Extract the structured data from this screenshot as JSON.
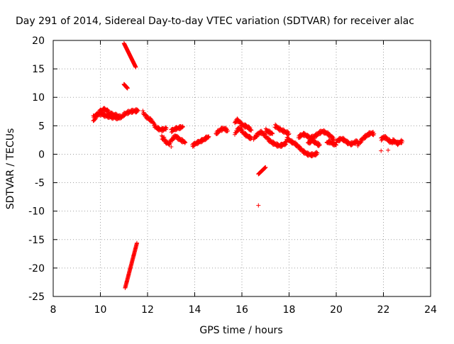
{
  "chart_data": {
    "type": "scatter",
    "title": "Day 291 of 2014, Sidereal Day-to-day VTEC variation (SDTVAR) for receiver alac",
    "xlabel": "GPS time / hours",
    "ylabel": "SDTVAR / TECUs",
    "xlim": [
      8,
      24
    ],
    "ylim": [
      -25,
      20
    ],
    "xticks": [
      "8",
      "10",
      "12",
      "14",
      "16",
      "18",
      "20",
      "22",
      "24"
    ],
    "yticks": [
      "20",
      "15",
      "10",
      "5",
      "0",
      "-5",
      "-10",
      "-15",
      "-20",
      "-25"
    ],
    "grid": true,
    "marker": "+",
    "colors": {
      "points": "#ff0000",
      "grid": "#a0a0a0",
      "axis": "#000000"
    },
    "series": [
      {
        "name": "SDTVAR",
        "segments": [
          {
            "x0": 11.0,
            "y0": 19.5,
            "x1": 11.5,
            "y1": 15.3
          },
          {
            "x0": 11.05,
            "y0": -23.5,
            "x1": 11.55,
            "y1": -15.6
          },
          {
            "x0": 11.0,
            "y0": 12.3,
            "x1": 11.15,
            "y1": 11.6
          },
          {
            "x0": 16.7,
            "y0": -3.5,
            "x1": 17.0,
            "y1": -2.3
          }
        ],
        "tracks": [
          [
            [
              9.7,
              5.8
            ],
            [
              9.8,
              6.5
            ],
            [
              9.9,
              7.2
            ],
            [
              10.0,
              7.6
            ],
            [
              10.1,
              7.8
            ],
            [
              10.2,
              7.9
            ],
            [
              10.3,
              7.6
            ],
            [
              10.4,
              7.2
            ],
            [
              10.5,
              7.0
            ],
            [
              10.6,
              6.9
            ],
            [
              10.7,
              6.8
            ],
            [
              10.8,
              6.6
            ],
            [
              10.9,
              6.5
            ],
            [
              11.0,
              7.0
            ],
            [
              11.1,
              7.2
            ],
            [
              11.2,
              7.4
            ],
            [
              11.3,
              7.5
            ],
            [
              11.4,
              7.6
            ],
            [
              11.5,
              7.6
            ],
            [
              11.6,
              7.7
            ]
          ],
          [
            [
              9.7,
              6.6
            ],
            [
              9.8,
              6.8
            ],
            [
              9.9,
              7.0
            ],
            [
              10.0,
              7.1
            ],
            [
              10.1,
              7.0
            ],
            [
              10.2,
              6.8
            ],
            [
              10.3,
              6.7
            ],
            [
              10.4,
              6.6
            ],
            [
              10.5,
              6.5
            ],
            [
              10.6,
              6.5
            ],
            [
              10.7,
              6.4
            ],
            [
              10.8,
              6.3
            ]
          ],
          [
            [
              11.8,
              7.4
            ],
            [
              11.9,
              6.8
            ],
            [
              12.0,
              6.4
            ],
            [
              12.1,
              6.1
            ],
            [
              12.2,
              5.8
            ],
            [
              12.3,
              5.0
            ],
            [
              12.4,
              4.6
            ],
            [
              12.5,
              4.4
            ],
            [
              12.6,
              4.3
            ],
            [
              12.7,
              4.4
            ],
            [
              12.8,
              4.6
            ]
          ],
          [
            [
              12.6,
              3.0
            ],
            [
              12.7,
              2.5
            ],
            [
              12.8,
              2.1
            ],
            [
              12.9,
              1.8
            ],
            [
              13.0,
              2.4
            ],
            [
              13.1,
              2.9
            ],
            [
              13.2,
              3.2
            ],
            [
              13.3,
              2.8
            ],
            [
              13.4,
              2.5
            ],
            [
              13.5,
              2.3
            ],
            [
              13.6,
              2.1
            ]
          ],
          [
            [
              13.0,
              4.1
            ],
            [
              13.1,
              4.3
            ],
            [
              13.2,
              4.5
            ],
            [
              13.3,
              4.6
            ],
            [
              13.4,
              4.7
            ],
            [
              13.5,
              4.8
            ]
          ],
          [
            [
              13.9,
              1.5
            ],
            [
              14.0,
              1.8
            ],
            [
              14.1,
              2.0
            ],
            [
              14.2,
              2.2
            ],
            [
              14.3,
              2.4
            ],
            [
              14.4,
              2.6
            ],
            [
              14.5,
              2.9
            ],
            [
              14.6,
              3.1
            ]
          ],
          [
            [
              14.9,
              3.6
            ],
            [
              15.0,
              4.0
            ],
            [
              15.1,
              4.3
            ],
            [
              15.2,
              4.5
            ],
            [
              15.3,
              4.4
            ],
            [
              15.4,
              4.1
            ]
          ],
          [
            [
              15.7,
              5.6
            ],
            [
              15.8,
              6.0
            ],
            [
              15.9,
              5.7
            ],
            [
              16.0,
              5.2
            ],
            [
              16.1,
              5.0
            ],
            [
              16.2,
              4.9
            ],
            [
              16.3,
              4.6
            ],
            [
              16.4,
              4.2
            ]
          ],
          [
            [
              15.7,
              3.6
            ],
            [
              15.8,
              4.2
            ],
            [
              15.9,
              4.6
            ],
            [
              16.0,
              4.1
            ],
            [
              16.1,
              3.6
            ],
            [
              16.2,
              3.3
            ],
            [
              16.3,
              3.0
            ],
            [
              16.4,
              2.8
            ]
          ],
          [
            [
              16.5,
              2.8
            ],
            [
              16.6,
              3.2
            ],
            [
              16.7,
              3.6
            ],
            [
              16.8,
              3.9
            ],
            [
              16.9,
              3.6
            ],
            [
              17.0,
              3.2
            ],
            [
              17.1,
              2.7
            ],
            [
              17.2,
              2.3
            ],
            [
              17.3,
              2.0
            ],
            [
              17.4,
              1.8
            ],
            [
              17.5,
              1.6
            ],
            [
              17.6,
              1.5
            ],
            [
              17.7,
              1.6
            ],
            [
              17.8,
              1.8
            ],
            [
              17.9,
              2.1
            ]
          ],
          [
            [
              17.0,
              4.3
            ],
            [
              17.1,
              4.0
            ],
            [
              17.2,
              3.8
            ],
            [
              17.3,
              3.6
            ]
          ],
          [
            [
              17.4,
              5.0
            ],
            [
              17.5,
              4.7
            ],
            [
              17.6,
              4.4
            ],
            [
              17.7,
              4.2
            ],
            [
              17.8,
              4.0
            ],
            [
              17.9,
              3.8
            ],
            [
              18.0,
              3.6
            ]
          ],
          [
            [
              17.9,
              2.8
            ],
            [
              18.0,
              2.5
            ],
            [
              18.1,
              2.2
            ],
            [
              18.2,
              2.0
            ],
            [
              18.3,
              1.7
            ],
            [
              18.4,
              1.3
            ],
            [
              18.5,
              0.9
            ],
            [
              18.6,
              0.5
            ],
            [
              18.7,
              0.2
            ],
            [
              18.8,
              0.0
            ],
            [
              18.9,
              -0.1
            ],
            [
              19.0,
              -0.1
            ],
            [
              19.1,
              0.0
            ],
            [
              19.2,
              0.2
            ]
          ],
          [
            [
              18.4,
              3.0
            ],
            [
              18.5,
              3.3
            ],
            [
              18.6,
              3.5
            ],
            [
              18.7,
              3.4
            ],
            [
              18.8,
              3.1
            ],
            [
              18.9,
              2.9
            ],
            [
              19.0,
              3.0
            ],
            [
              19.1,
              3.2
            ],
            [
              19.2,
              3.5
            ],
            [
              19.3,
              3.8
            ],
            [
              19.4,
              4.0
            ],
            [
              19.5,
              3.9
            ],
            [
              19.6,
              3.7
            ],
            [
              19.7,
              3.4
            ],
            [
              19.8,
              3.0
            ],
            [
              19.9,
              2.6
            ]
          ],
          [
            [
              18.8,
              2.0
            ],
            [
              18.9,
              2.2
            ],
            [
              19.0,
              2.4
            ],
            [
              19.1,
              2.1
            ],
            [
              19.2,
              1.8
            ],
            [
              19.3,
              1.6
            ]
          ],
          [
            [
              19.6,
              2.0
            ],
            [
              19.7,
              2.2
            ],
            [
              19.8,
              2.0
            ],
            [
              19.9,
              1.8
            ],
            [
              20.0,
              1.6
            ]
          ],
          [
            [
              20.0,
              2.2
            ],
            [
              20.1,
              2.5
            ],
            [
              20.2,
              2.7
            ],
            [
              20.3,
              2.6
            ],
            [
              20.4,
              2.3
            ],
            [
              20.5,
              2.0
            ],
            [
              20.6,
              1.8
            ],
            [
              20.7,
              1.9
            ],
            [
              20.8,
              2.1
            ],
            [
              20.9,
              2.3
            ]
          ],
          [
            [
              20.9,
              1.6
            ],
            [
              21.0,
              2.1
            ],
            [
              21.1,
              2.6
            ],
            [
              21.2,
              3.0
            ],
            [
              21.3,
              3.3
            ],
            [
              21.4,
              3.6
            ],
            [
              21.5,
              3.7
            ],
            [
              21.6,
              3.6
            ]
          ],
          [
            [
              21.9,
              2.6
            ],
            [
              22.0,
              3.0
            ],
            [
              22.1,
              2.9
            ],
            [
              22.2,
              2.5
            ],
            [
              22.3,
              2.2
            ],
            [
              22.4,
              2.0
            ]
          ],
          [
            [
              22.4,
              2.4
            ],
            [
              22.5,
              2.2
            ],
            [
              22.6,
              1.9
            ],
            [
              22.7,
              2.1
            ],
            [
              22.8,
              2.3
            ]
          ]
        ],
        "isolated_points": [
          [
            16.7,
            -9.0
          ],
          [
            21.9,
            0.6
          ],
          [
            22.2,
            0.7
          ],
          [
            12.7,
            3.0
          ],
          [
            13.0,
            1.3
          ]
        ]
      }
    ]
  }
}
